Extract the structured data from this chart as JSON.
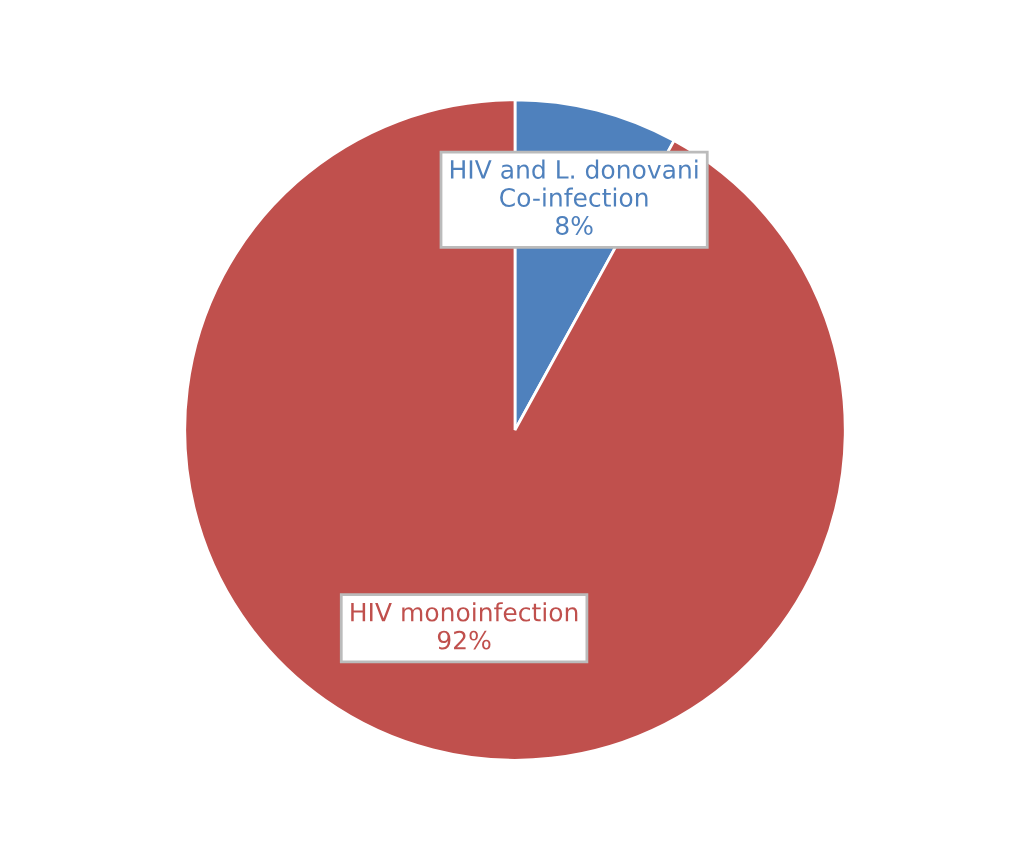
{
  "chart_data": {
    "type": "pie",
    "categories": [
      "HIV and L. donovani Co-infection",
      "HIV monoinfection"
    ],
    "values": [
      8,
      92
    ],
    "colors": [
      "#4f81bd",
      "#c0504d"
    ],
    "value_labels": [
      "8%",
      "92%"
    ],
    "legend": false
  }
}
